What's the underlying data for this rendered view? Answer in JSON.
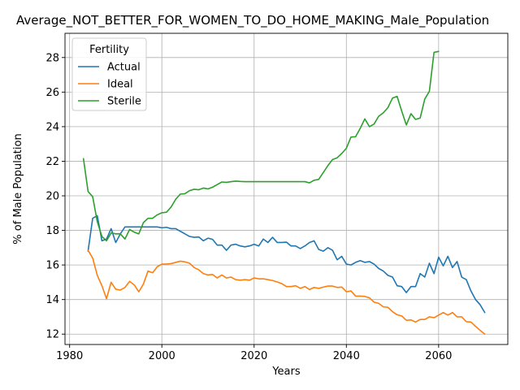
{
  "chart_data": {
    "type": "line",
    "title": "Average_NOT_BETTER_FOR_WOMEN_TO_DO_HOME_MAKING_Male_Population",
    "xlabel": "Years",
    "ylabel": "% of Male Population",
    "xlim": [
      1979,
      2075
    ],
    "ylim": [
      11.4,
      29.4
    ],
    "x_ticks": [
      1980,
      2000,
      2020,
      2040,
      2060
    ],
    "y_ticks": [
      12,
      14,
      16,
      18,
      20,
      22,
      24,
      26,
      28
    ],
    "grid": true,
    "legend": {
      "title": "Fertility",
      "placement": "top-left"
    },
    "series": [
      {
        "name": "Actual",
        "color": "#1f77b4",
        "x": [
          1984,
          1985,
          1986,
          1987,
          1988,
          1989,
          1990,
          1991,
          1992,
          1993,
          1994,
          1995,
          1996,
          1997,
          1998,
          1999,
          2000,
          2001,
          2002,
          2003,
          2004,
          2005,
          2006,
          2007,
          2008,
          2009,
          2010,
          2011,
          2012,
          2013,
          2014,
          2015,
          2016,
          2017,
          2018,
          2019,
          2020,
          2021,
          2022,
          2023,
          2024,
          2025,
          2026,
          2027,
          2028,
          2029,
          2030,
          2031,
          2032,
          2033,
          2034,
          2035,
          2036,
          2037,
          2038,
          2039,
          2040,
          2041,
          2042,
          2043,
          2044,
          2045,
          2046,
          2047,
          2048,
          2049,
          2050,
          2051,
          2052,
          2053,
          2054,
          2055,
          2056,
          2057,
          2058,
          2059,
          2060,
          2061,
          2062,
          2063,
          2064,
          2065,
          2066,
          2067,
          2068,
          2069,
          2070
        ],
        "values": [
          16.8,
          18.7,
          18.85,
          17.4,
          17.5,
          18.1,
          17.3,
          17.8,
          18.2,
          18.2,
          18.2,
          18.2,
          18.2,
          18.2,
          18.2,
          18.2,
          18.15,
          18.18,
          18.1,
          18.1,
          17.95,
          17.8,
          17.65,
          17.6,
          17.62,
          17.4,
          17.55,
          17.48,
          17.15,
          17.15,
          16.85,
          17.15,
          17.2,
          17.1,
          17.05,
          17.1,
          17.2,
          17.1,
          17.5,
          17.3,
          17.6,
          17.3,
          17.3,
          17.32,
          17.1,
          17.1,
          16.95,
          17.1,
          17.3,
          17.4,
          16.9,
          16.8,
          17.0,
          16.85,
          16.3,
          16.5,
          16.05,
          16.0,
          16.15,
          16.25,
          16.15,
          16.2,
          16.05,
          15.8,
          15.65,
          15.4,
          15.3,
          14.8,
          14.75,
          14.4,
          14.75,
          14.75,
          15.5,
          15.3,
          16.1,
          15.5,
          16.45,
          15.95,
          16.5,
          15.85,
          16.2,
          15.3,
          15.15,
          14.5,
          14.0,
          13.7,
          13.25
        ]
      },
      {
        "name": "Ideal",
        "color": "#ff7f0e",
        "x": [
          1984,
          1985,
          1986,
          1987,
          1988,
          1989,
          1990,
          1991,
          1992,
          1993,
          1994,
          1995,
          1996,
          1997,
          1998,
          1999,
          2000,
          2001,
          2002,
          2003,
          2004,
          2005,
          2006,
          2007,
          2008,
          2009,
          2010,
          2011,
          2012,
          2013,
          2014,
          2015,
          2016,
          2017,
          2018,
          2019,
          2020,
          2021,
          2022,
          2023,
          2024,
          2025,
          2026,
          2027,
          2028,
          2029,
          2030,
          2031,
          2032,
          2033,
          2034,
          2035,
          2036,
          2037,
          2038,
          2039,
          2040,
          2041,
          2042,
          2043,
          2044,
          2045,
          2046,
          2047,
          2048,
          2049,
          2050,
          2051,
          2052,
          2053,
          2054,
          2055,
          2056,
          2057,
          2058,
          2059,
          2060,
          2061,
          2062,
          2063,
          2064,
          2065,
          2066,
          2067,
          2068,
          2069,
          2070
        ],
        "values": [
          16.85,
          16.4,
          15.4,
          14.8,
          14.05,
          15.0,
          14.6,
          14.55,
          14.7,
          15.05,
          14.85,
          14.45,
          14.9,
          15.65,
          15.55,
          15.9,
          16.05,
          16.05,
          16.08,
          16.15,
          16.22,
          16.18,
          16.1,
          15.85,
          15.72,
          15.5,
          15.42,
          15.45,
          15.25,
          15.42,
          15.25,
          15.3,
          15.15,
          15.12,
          15.15,
          15.12,
          15.25,
          15.2,
          15.2,
          15.15,
          15.1,
          15.02,
          14.92,
          14.75,
          14.75,
          14.8,
          14.65,
          14.75,
          14.58,
          14.7,
          14.65,
          14.72,
          14.78,
          14.78,
          14.7,
          14.72,
          14.45,
          14.5,
          14.2,
          14.2,
          14.18,
          14.1,
          13.85,
          13.78,
          13.58,
          13.55,
          13.3,
          13.12,
          13.05,
          12.8,
          12.82,
          12.7,
          12.85,
          12.85,
          13.0,
          12.95,
          13.1,
          13.25,
          13.1,
          13.25,
          13.0,
          13.0,
          12.72,
          12.7,
          12.45,
          12.22,
          12.0
        ]
      },
      {
        "name": "Sterile",
        "color": "#2ca02c",
        "x": [
          1983,
          1984,
          1985,
          1986,
          1987,
          1988,
          1989,
          1990,
          1991,
          1992,
          1993,
          1994,
          1995,
          1996,
          1997,
          1998,
          1999,
          2000,
          2001,
          2002,
          2003,
          2004,
          2005,
          2006,
          2007,
          2008,
          2009,
          2010,
          2011,
          2012,
          2013,
          2014,
          2015,
          2016,
          2017,
          2018,
          2019,
          2020,
          2021,
          2022,
          2023,
          2024,
          2025,
          2026,
          2027,
          2028,
          2029,
          2030,
          2031,
          2032,
          2033,
          2034,
          2035,
          2036,
          2037,
          2038,
          2039,
          2040,
          2041,
          2042,
          2043,
          2044,
          2045,
          2046,
          2047,
          2048,
          2049,
          2050,
          2051,
          2052,
          2053,
          2054,
          2055,
          2056,
          2057,
          2058,
          2059,
          2060
        ],
        "values": [
          22.15,
          20.25,
          19.95,
          18.5,
          17.65,
          17.4,
          17.85,
          17.8,
          17.8,
          17.5,
          18.05,
          17.9,
          17.8,
          18.45,
          18.7,
          18.7,
          18.9,
          19.02,
          19.05,
          19.35,
          19.8,
          20.1,
          20.12,
          20.3,
          20.38,
          20.35,
          20.45,
          20.4,
          20.5,
          20.65,
          20.8,
          20.78,
          20.82,
          20.85,
          20.83,
          20.82,
          20.82,
          20.82,
          20.82,
          20.82,
          20.82,
          20.82,
          20.82,
          20.82,
          20.82,
          20.82,
          20.82,
          20.82,
          20.82,
          20.75,
          20.9,
          20.95,
          21.35,
          21.75,
          22.1,
          22.2,
          22.45,
          22.75,
          23.4,
          23.42,
          23.9,
          24.45,
          24.0,
          24.15,
          24.6,
          24.8,
          25.1,
          25.65,
          25.75,
          24.9,
          24.1,
          24.75,
          24.42,
          24.5,
          25.6,
          26.05,
          28.3,
          28.35
        ]
      }
    ]
  }
}
